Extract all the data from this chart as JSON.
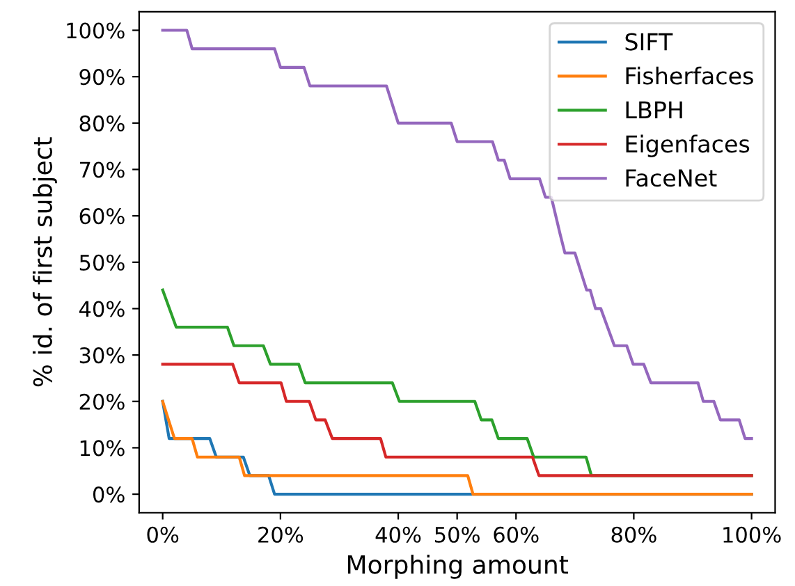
{
  "chart_data": {
    "type": "line",
    "xlabel": "Morphing amount",
    "ylabel": "% id. of first subject",
    "xlim": [
      -4,
      104
    ],
    "ylim": [
      -4,
      104
    ],
    "xticks": [
      {
        "value": 0,
        "label": "0%"
      },
      {
        "value": 20,
        "label": "20%"
      },
      {
        "value": 40,
        "label": "40%"
      },
      {
        "value": 50,
        "label": "50%"
      },
      {
        "value": 60,
        "label": "60%"
      },
      {
        "value": 80,
        "label": "80%"
      },
      {
        "value": 100,
        "label": "100%"
      }
    ],
    "yticks": [
      {
        "value": 0,
        "label": "0%"
      },
      {
        "value": 10,
        "label": "10%"
      },
      {
        "value": 20,
        "label": "20%"
      },
      {
        "value": 30,
        "label": "30%"
      },
      {
        "value": 40,
        "label": "40%"
      },
      {
        "value": 50,
        "label": "50%"
      },
      {
        "value": 60,
        "label": "60%"
      },
      {
        "value": 70,
        "label": "70%"
      },
      {
        "value": 80,
        "label": "80%"
      },
      {
        "value": 90,
        "label": "90%"
      },
      {
        "value": 100,
        "label": "100%"
      }
    ],
    "grid": false,
    "legend": "top right",
    "series": [
      {
        "name": "SIFT",
        "color": "#1f77b4",
        "x": [
          0,
          1.1,
          8,
          9.1,
          13.7,
          14.8,
          18,
          19,
          100
        ],
        "values": [
          20,
          12,
          12,
          8,
          8,
          4,
          4,
          0,
          0
        ]
      },
      {
        "name": "Fisherfaces",
        "color": "#ff7f0e",
        "x": [
          0,
          2,
          5,
          5.9,
          13,
          13.9,
          51.8,
          52.7,
          100
        ],
        "values": [
          20,
          12,
          12,
          8,
          8,
          4,
          4,
          0,
          0
        ]
      },
      {
        "name": "LBPH",
        "color": "#2ca02c",
        "x": [
          0,
          2.3,
          11,
          12.1,
          17.1,
          18.3,
          23.1,
          24.2,
          39,
          40.2,
          53,
          54.1,
          55.9,
          57,
          61.9,
          63,
          71.9,
          72.8,
          100
        ],
        "values": [
          44,
          36,
          36,
          32,
          32,
          28,
          28,
          24,
          24,
          20,
          20,
          16,
          16,
          12,
          12,
          8,
          8,
          4,
          4
        ]
      },
      {
        "name": "Eigenfaces",
        "color": "#d62728",
        "x": [
          0,
          11.9,
          13,
          20.1,
          21,
          24.9,
          26,
          27.6,
          28.8,
          37,
          37.9,
          62.8,
          63.9,
          100
        ],
        "values": [
          28,
          28,
          24,
          24,
          20,
          20,
          16,
          16,
          12,
          12,
          8,
          8,
          4,
          4
        ]
      },
      {
        "name": "FaceNet",
        "color": "#9467bd",
        "x": [
          0,
          4.1,
          5,
          19,
          20,
          24,
          25,
          38,
          40,
          49,
          50,
          56,
          57,
          58,
          59,
          64,
          65,
          66,
          67.5,
          68.3,
          70,
          72,
          72.6,
          73.5,
          74.4,
          76.7,
          78.8,
          79.9,
          81.7,
          82.9,
          90.9,
          91.8,
          93.6,
          94.7,
          97.9,
          98.9,
          100
        ],
        "values": [
          100,
          100,
          96,
          96,
          92,
          92,
          88,
          88,
          80,
          80,
          76,
          76,
          72,
          72,
          68,
          68,
          64,
          64,
          56,
          52,
          52,
          44,
          44,
          40,
          40,
          32,
          32,
          28,
          28,
          24,
          24,
          20,
          20,
          16,
          16,
          12,
          12
        ]
      }
    ]
  }
}
